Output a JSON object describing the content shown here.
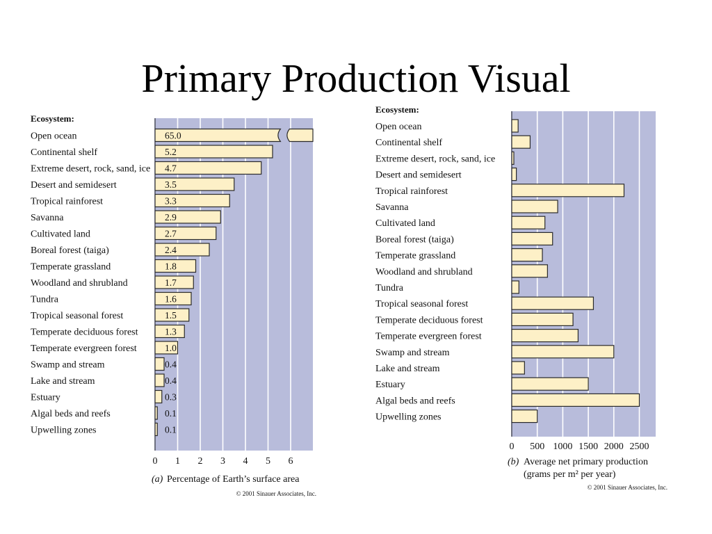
{
  "slide": {
    "title": "Primary Production Visual"
  },
  "chart_data": [
    {
      "type": "bar",
      "orientation": "horizontal",
      "panel_label": "(a)",
      "header": "Ecosystem:",
      "xlabel": "Percentage of Earth’s surface area",
      "xlim": [
        0,
        7
      ],
      "xticks": [
        "0",
        "1",
        "2",
        "3",
        "4",
        "5",
        "6"
      ],
      "axis_break": "between 5.5 and 6.5 on the Open ocean bar",
      "categories": [
        "Open ocean",
        "Continental shelf",
        "Extreme desert, rock, sand, ice",
        "Desert and semidesert",
        "Tropical rainforest",
        "Savanna",
        "Cultivated land",
        "Boreal forest (taiga)",
        "Temperate grassland",
        "Woodland and shrubland",
        "Tundra",
        "Tropical seasonal forest",
        "Temperate deciduous forest",
        "Temperate evergreen forest",
        "Swamp and stream",
        "Lake and stream",
        "Estuary",
        "Algal beds and reefs",
        "Upwelling zones"
      ],
      "values": [
        65.0,
        5.2,
        4.7,
        3.5,
        3.3,
        2.9,
        2.7,
        2.4,
        1.8,
        1.7,
        1.6,
        1.5,
        1.3,
        1.0,
        0.4,
        0.4,
        0.3,
        0.1,
        0.1
      ],
      "value_labels": [
        "65.0",
        "5.2",
        "4.7",
        "3.5",
        "3.3",
        "2.9",
        "2.7",
        "2.4",
        "1.8",
        "1.7",
        "1.6",
        "1.5",
        "1.3",
        "1.0",
        "0.4",
        "0.4",
        "0.3",
        "0.1",
        "0.1"
      ],
      "copyright": "© 2001 Sinauer Associates, Inc.",
      "colors": {
        "background": "#b8bcdb",
        "bar": "#fdf0c7",
        "grid": "#ffffff"
      }
    },
    {
      "type": "bar",
      "orientation": "horizontal",
      "panel_label": "(b)",
      "header": "Ecosystem:",
      "xlabel_line1": "Average net primary production",
      "xlabel_line2": "(grams per m² per year)",
      "xlim": [
        0,
        2850
      ],
      "xticks": [
        "0",
        "500",
        "1000",
        "1500",
        "2000",
        "2500"
      ],
      "categories": [
        "Open ocean",
        "Continental shelf",
        "Extreme desert, rock, sand, ice",
        "Desert and semidesert",
        "Tropical rainforest",
        "Savanna",
        "Cultivated land",
        "Boreal forest (taiga)",
        "Temperate grassland",
        "Woodland and shrubland",
        "Tundra",
        "Tropical seasonal forest",
        "Temperate deciduous forest",
        "Temperate evergreen forest",
        "Swamp and stream",
        "Lake and stream",
        "Estuary",
        "Algal beds and reefs",
        "Upwelling zones"
      ],
      "values": [
        125,
        360,
        3,
        90,
        2200,
        900,
        650,
        800,
        600,
        700,
        140,
        1600,
        1200,
        1300,
        2000,
        250,
        1500,
        2500,
        500
      ],
      "copyright": "© 2001 Sinauer Associates, Inc.",
      "colors": {
        "background": "#b8bcdb",
        "bar": "#fdf0c7",
        "grid": "#ffffff"
      }
    }
  ]
}
